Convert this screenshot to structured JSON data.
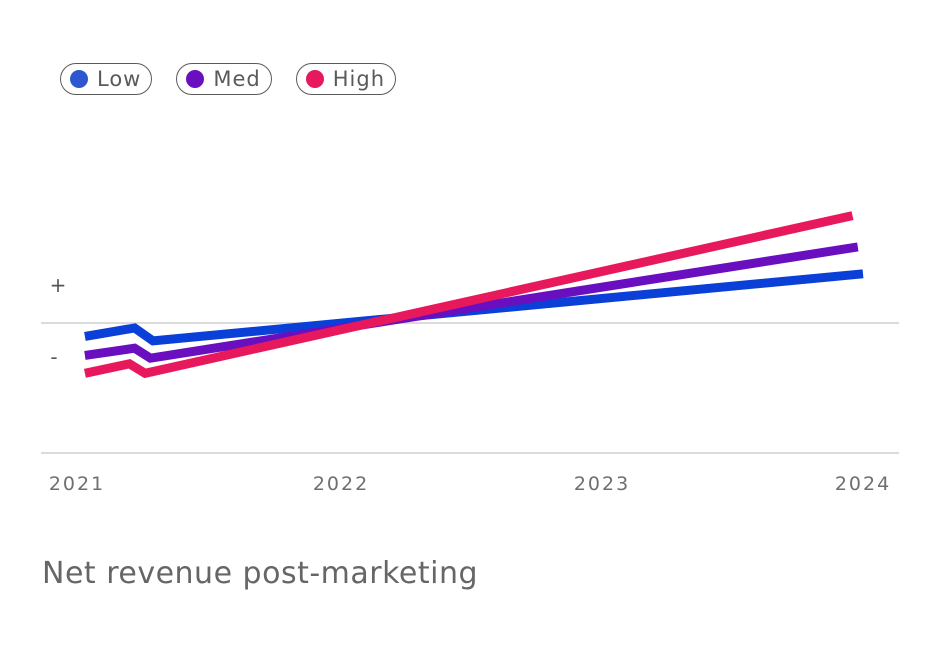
{
  "chart_data": {
    "type": "line",
    "title": "Net revenue post-marketing",
    "x_ticks": [
      "2021",
      "2022",
      "2023",
      "2024"
    ],
    "y_markers": {
      "positive": "+",
      "negative": "-"
    },
    "xlim": [
      0,
      3
    ],
    "ylim": [
      -1.3,
      3.45
    ],
    "legend_position": "top-left",
    "series": [
      {
        "name": "Low",
        "color": "#0a3fd8",
        "x": [
          0.03,
          0.22,
          0.29,
          3.0
        ],
        "y": [
          -0.24,
          -0.09,
          -0.32,
          0.88
        ]
      },
      {
        "name": "Med",
        "color": "#6a0fbf",
        "x": [
          0.03,
          0.22,
          0.28,
          2.98
        ],
        "y": [
          -0.58,
          -0.45,
          -0.63,
          1.36
        ]
      },
      {
        "name": "High",
        "color": "#e8185c",
        "x": [
          0.03,
          0.2,
          0.26,
          2.96
        ],
        "y": [
          -0.9,
          -0.73,
          -0.9,
          1.92
        ]
      }
    ]
  }
}
